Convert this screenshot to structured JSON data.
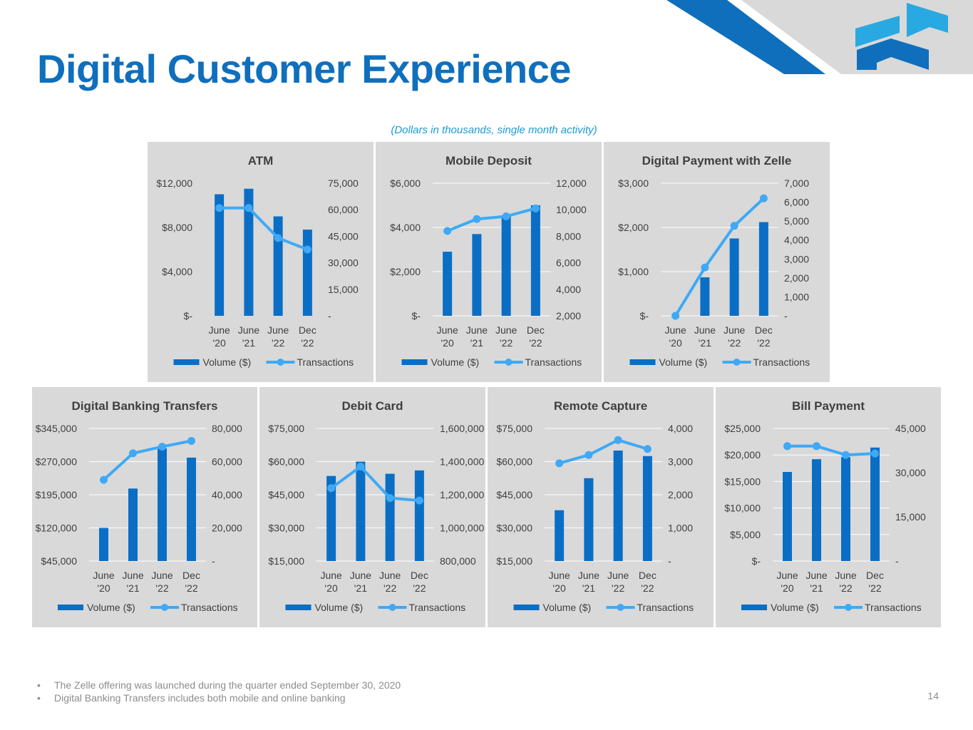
{
  "page": {
    "title": "Digital Customer Experience",
    "subtitle": "(Dollars in thousands, single month activity)",
    "notes": [
      "The Zelle offering was launched during the quarter ended September 30, 2020",
      "Digital Banking Transfers includes both mobile and online banking"
    ],
    "page_number": "14"
  },
  "colors": {
    "title": "#0f6fbd",
    "bar": "#0a6ec5",
    "line": "#3fa9f5",
    "panel": "#d9d9d9",
    "deco_dark": "#0f6fbd",
    "deco_gray": "#d9d9d9",
    "logo_light": "#29a9e1",
    "logo_dark": "#0f6fbd"
  },
  "logo": {
    "name": "company-logo"
  },
  "chart_data": [
    {
      "id": "atm",
      "type": "bar",
      "title": "ATM",
      "categories": [
        "June '20",
        "June '21",
        "June '22",
        "Dec '22"
      ],
      "series": [
        {
          "name": "Volume ($)",
          "type": "bar",
          "axis": "left",
          "values": [
            11000,
            11500,
            9000,
            7800
          ]
        },
        {
          "name": "Transactions",
          "type": "line",
          "axis": "right",
          "values": [
            61000,
            61000,
            44000,
            37500
          ]
        }
      ],
      "left_axis": {
        "ticks": [
          0,
          4000,
          8000,
          12000
        ],
        "labels": [
          "$-",
          "$4,000",
          "$8,000",
          "$12,000"
        ],
        "grid": false
      },
      "right_axis": {
        "ticks": [
          0,
          15000,
          30000,
          45000,
          60000,
          75000
        ],
        "labels": [
          "-",
          "15,000",
          "30,000",
          "45,000",
          "60,000",
          "75,000"
        ]
      },
      "legend": [
        "Volume ($)",
        "Transactions"
      ]
    },
    {
      "id": "mobile-deposit",
      "type": "bar",
      "title": "Mobile Deposit",
      "categories": [
        "June '20",
        "June '21",
        "June '22",
        "Dec '22"
      ],
      "series": [
        {
          "name": "Volume ($)",
          "type": "bar",
          "axis": "left",
          "values": [
            2900,
            3700,
            4550,
            5000
          ]
        },
        {
          "name": "Transactions",
          "type": "line",
          "axis": "right",
          "values": [
            8400,
            9300,
            9500,
            10100
          ]
        }
      ],
      "left_axis": {
        "ticks": [
          0,
          2000,
          4000,
          6000
        ],
        "labels": [
          "$-",
          "$2,000",
          "$4,000",
          "$6,000"
        ],
        "grid": true
      },
      "right_axis": {
        "ticks": [
          2000,
          4000,
          6000,
          8000,
          10000,
          12000
        ],
        "labels": [
          "2,000",
          "4,000",
          "6,000",
          "8,000",
          "10,000",
          "12,000"
        ]
      },
      "legend": [
        "Volume ($)",
        "Transactions"
      ]
    },
    {
      "id": "zelle",
      "type": "bar",
      "title": "Digital Payment with Zelle",
      "categories": [
        "June '20",
        "June '21",
        "June '22",
        "Dec '22"
      ],
      "series": [
        {
          "name": "Volume ($)",
          "type": "bar",
          "axis": "left",
          "values": [
            0,
            870,
            1750,
            2120
          ]
        },
        {
          "name": "Transactions",
          "type": "line",
          "axis": "right",
          "values": [
            0,
            2550,
            4750,
            6200
          ]
        }
      ],
      "left_axis": {
        "ticks": [
          0,
          1000,
          2000,
          3000
        ],
        "labels": [
          "$-",
          "$1,000",
          "$2,000",
          "$3,000"
        ],
        "grid": true
      },
      "right_axis": {
        "ticks": [
          0,
          1000,
          2000,
          3000,
          4000,
          5000,
          6000,
          7000
        ],
        "labels": [
          "-",
          "1,000",
          "2,000",
          "3,000",
          "4,000",
          "5,000",
          "6,000",
          "7,000"
        ]
      },
      "legend": [
        "Volume ($)",
        "Transactions"
      ]
    },
    {
      "id": "digital-banking-transfers",
      "type": "bar",
      "title": "Digital Banking Transfers",
      "categories": [
        "June '20",
        "June '21",
        "June '22",
        "Dec '22"
      ],
      "series": [
        {
          "name": "Volume ($)",
          "type": "bar",
          "axis": "left",
          "values": [
            120000,
            209000,
            300000,
            279000
          ]
        },
        {
          "name": "Transactions",
          "type": "line",
          "axis": "right",
          "values": [
            49000,
            65000,
            69000,
            72500
          ]
        }
      ],
      "left_axis": {
        "ticks": [
          45000,
          120000,
          195000,
          270000,
          345000
        ],
        "labels": [
          "$45,000",
          "$120,000",
          "$195,000",
          "$270,000",
          "$345,000"
        ],
        "grid": true
      },
      "right_axis": {
        "ticks": [
          0,
          20000,
          40000,
          60000,
          80000
        ],
        "labels": [
          "-",
          "20,000",
          "40,000",
          "60,000",
          "80,000"
        ]
      },
      "legend": [
        "Volume ($)",
        "Transactions"
      ]
    },
    {
      "id": "debit-card",
      "type": "bar",
      "title": "Debit Card",
      "categories": [
        "June '20",
        "June '21",
        "June '22",
        "Dec '22"
      ],
      "series": [
        {
          "name": "Volume ($)",
          "type": "bar",
          "axis": "left",
          "values": [
            53500,
            60000,
            54500,
            56000
          ]
        },
        {
          "name": "Transactions",
          "type": "line",
          "axis": "right",
          "values": [
            1240000,
            1370000,
            1180000,
            1165000
          ]
        }
      ],
      "left_axis": {
        "ticks": [
          15000,
          30000,
          45000,
          60000,
          75000
        ],
        "labels": [
          "$15,000",
          "$30,000",
          "$45,000",
          "$60,000",
          "$75,000"
        ],
        "grid": true
      },
      "right_axis": {
        "ticks": [
          800000,
          1000000,
          1200000,
          1400000,
          1600000
        ],
        "labels": [
          "800,000",
          "1,000,000",
          "1,200,000",
          "1,400,000",
          "1,600,000"
        ]
      },
      "legend": [
        "Volume ($)",
        "Transactions"
      ]
    },
    {
      "id": "remote-capture",
      "type": "bar",
      "title": "Remote Capture",
      "categories": [
        "June '20",
        "June '21",
        "June '22",
        "Dec '22"
      ],
      "series": [
        {
          "name": "Volume ($)",
          "type": "bar",
          "axis": "left",
          "values": [
            38000,
            52500,
            65000,
            62500
          ]
        },
        {
          "name": "Transactions",
          "type": "line",
          "axis": "right",
          "values": [
            2950,
            3200,
            3650,
            3380
          ]
        }
      ],
      "left_axis": {
        "ticks": [
          15000,
          30000,
          45000,
          60000,
          75000
        ],
        "labels": [
          "$15,000",
          "$30,000",
          "$45,000",
          "$60,000",
          "$75,000"
        ],
        "grid": true
      },
      "right_axis": {
        "ticks": [
          0,
          1000,
          2000,
          3000,
          4000
        ],
        "labels": [
          "-",
          "1,000",
          "2,000",
          "3,000",
          "4,000"
        ]
      },
      "legend": [
        "Volume ($)",
        "Transactions"
      ]
    },
    {
      "id": "bill-payment",
      "type": "bar",
      "title": "Bill Payment",
      "categories": [
        "June '20",
        "June '21",
        "June '22",
        "Dec '22"
      ],
      "series": [
        {
          "name": "Volume ($)",
          "type": "bar",
          "axis": "left",
          "values": [
            16800,
            19200,
            19600,
            21400
          ]
        },
        {
          "name": "Transactions",
          "type": "line",
          "axis": "right",
          "values": [
            39000,
            39000,
            36000,
            36500
          ]
        }
      ],
      "left_axis": {
        "ticks": [
          0,
          5000,
          10000,
          15000,
          20000,
          25000
        ],
        "labels": [
          "$-",
          "$5,000",
          "$10,000",
          "$15,000",
          "$20,000",
          "$25,000"
        ],
        "grid": true
      },
      "right_axis": {
        "ticks": [
          0,
          15000,
          30000,
          45000
        ],
        "labels": [
          "-",
          "15,000",
          "30,000",
          "45,000"
        ]
      },
      "legend": [
        "Volume ($)",
        "Transactions"
      ]
    }
  ]
}
